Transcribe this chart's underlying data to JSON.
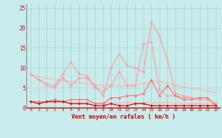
{
  "x": [
    0,
    1,
    2,
    3,
    4,
    5,
    6,
    7,
    8,
    9,
    10,
    11,
    12,
    13,
    14,
    15,
    16,
    17,
    18,
    19,
    20,
    21,
    22,
    23
  ],
  "line3": [
    8.5,
    7.0,
    6.0,
    5.5,
    8.5,
    11.5,
    8.5,
    8.0,
    5.5,
    3.0,
    10.0,
    13.5,
    10.5,
    10.0,
    9.0,
    21.5,
    18.0,
    12.0,
    3.5,
    3.0,
    2.5,
    2.0,
    2.0,
    1.0
  ],
  "line4": [
    8.5,
    7.0,
    5.5,
    5.0,
    7.5,
    5.5,
    7.5,
    7.5,
    5.0,
    4.0,
    5.5,
    9.0,
    5.5,
    5.5,
    16.0,
    16.5,
    4.5,
    3.0,
    3.0,
    2.5,
    2.5,
    2.0,
    2.0,
    1.0
  ],
  "line1": [
    1.5,
    1.5,
    1.5,
    2.0,
    1.5,
    2.0,
    2.0,
    2.0,
    1.0,
    1.0,
    2.5,
    2.5,
    3.0,
    3.0,
    3.5,
    7.0,
    3.0,
    5.5,
    3.0,
    2.0,
    2.0,
    2.5,
    2.5,
    0.5
  ],
  "line2": [
    1.5,
    1.0,
    1.5,
    1.5,
    1.5,
    1.0,
    1.0,
    1.0,
    0.5,
    0.5,
    1.0,
    0.5,
    0.5,
    1.0,
    1.0,
    0.5,
    0.5,
    0.5,
    0.5,
    0.5,
    0.5,
    0.5,
    0.5,
    0.5
  ],
  "trend1": [
    8.2,
    7.8,
    7.4,
    7.0,
    6.8,
    6.5,
    6.2,
    6.0,
    5.8,
    5.6,
    5.6,
    5.6,
    5.6,
    5.8,
    6.0,
    6.5,
    6.5,
    6.2,
    5.5,
    5.2,
    4.8,
    4.5,
    4.2,
    3.8
  ],
  "trend2": [
    1.5,
    1.5,
    1.4,
    1.4,
    1.4,
    1.3,
    1.3,
    1.3,
    1.2,
    1.2,
    1.2,
    1.2,
    1.2,
    1.2,
    1.2,
    1.2,
    1.2,
    1.2,
    1.1,
    1.1,
    1.1,
    1.0,
    1.0,
    1.0
  ],
  "bg_color": "#c8ecec",
  "grid_color": "#aacccc",
  "color_dark_red": "#cc0000",
  "color_light_red": "#ff9999",
  "color_mid_red": "#ff6666",
  "color_trend": "#ffbbbb",
  "xlabel": "Vent moyen/en rafales ( km/h )",
  "ylim": [
    0,
    26
  ],
  "xlim": [
    -0.5,
    23.5
  ],
  "yticks": [
    0,
    5,
    10,
    15,
    20,
    25
  ],
  "xticks": [
    0,
    1,
    2,
    3,
    4,
    5,
    6,
    7,
    8,
    9,
    10,
    11,
    12,
    13,
    14,
    15,
    16,
    17,
    18,
    19,
    20,
    21,
    22,
    23
  ]
}
